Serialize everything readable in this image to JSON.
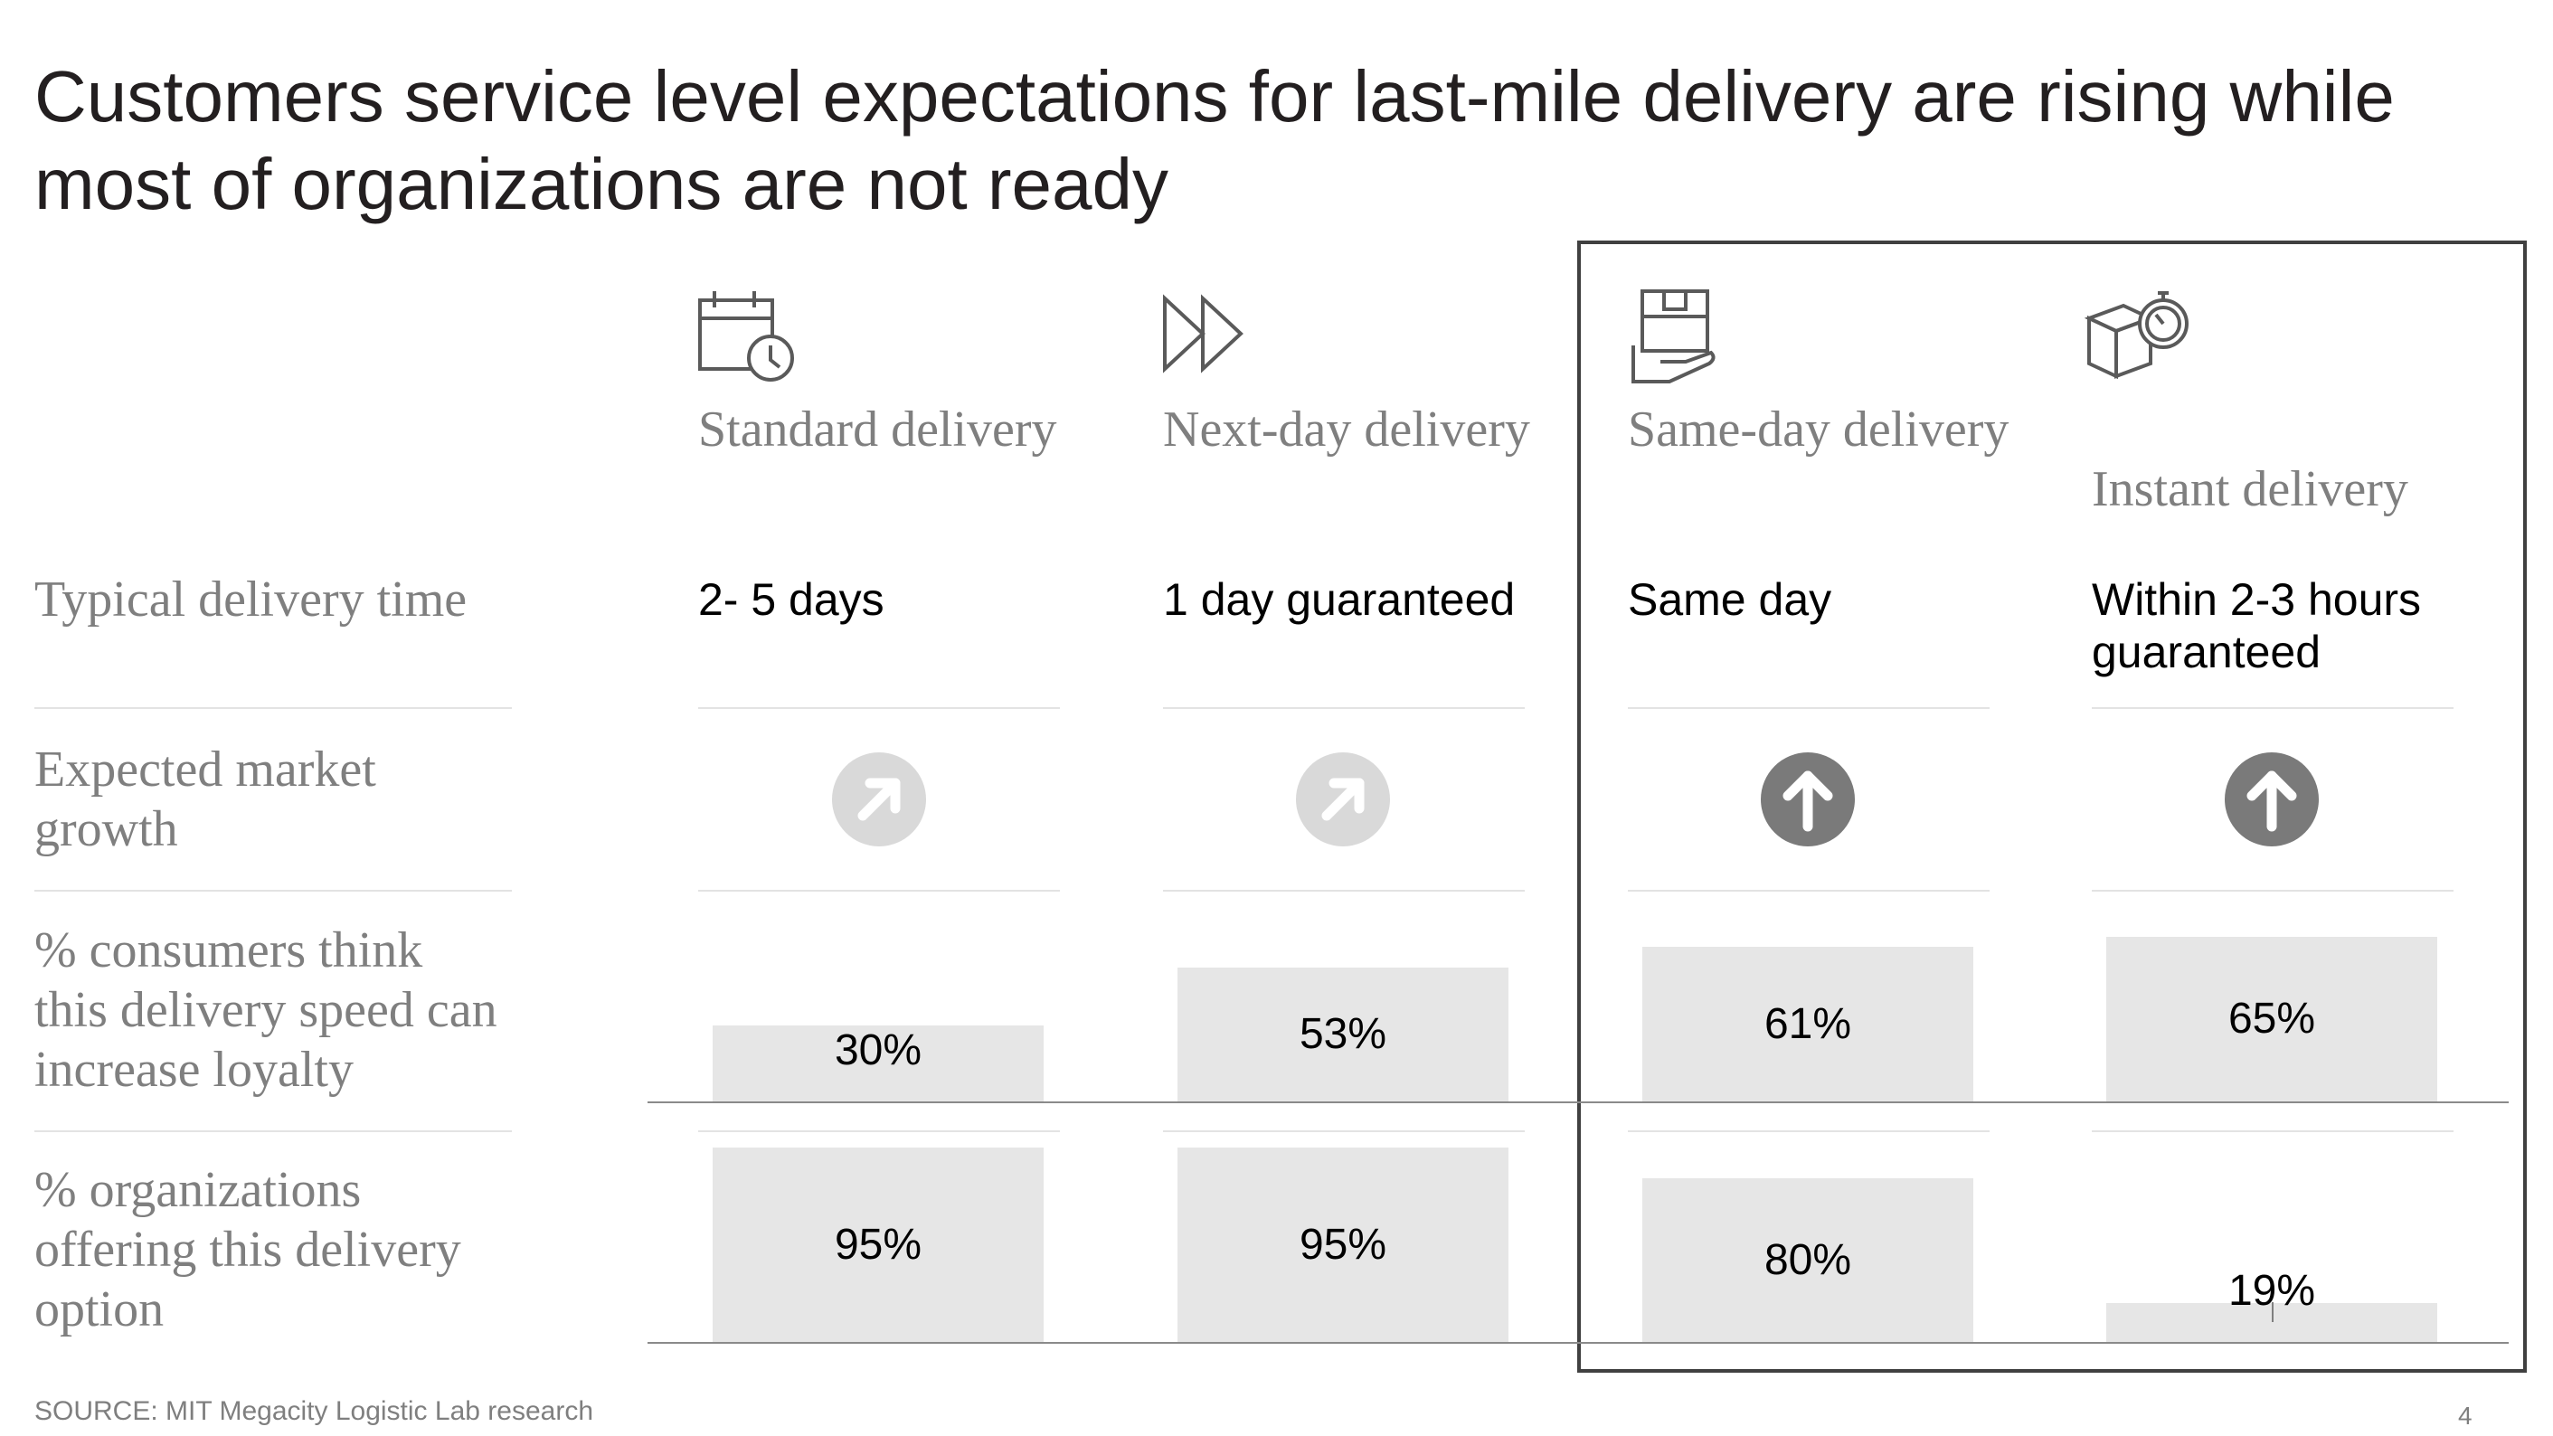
{
  "title": "Customers service level expectations for last-mile delivery are rising while most of organizations are not ready",
  "columns": [
    {
      "title": "Standard delivery",
      "icon": "calendar-clock-icon",
      "time": "2- 5 days",
      "growth": "up-right",
      "loyalty": 30,
      "loyalty_label": "30%",
      "offering": 95,
      "offering_label": "95%"
    },
    {
      "title": "Next-day delivery",
      "icon": "fast-forward-icon",
      "time": "1 day guaranteed",
      "growth": "up-right",
      "loyalty": 53,
      "loyalty_label": "53%",
      "offering": 95,
      "offering_label": "95%"
    },
    {
      "title": "Same-day delivery",
      "icon": "package-in-hand-icon",
      "time": "Same day",
      "growth": "up",
      "loyalty": 61,
      "loyalty_label": "61%",
      "offering": 80,
      "offering_label": "80%"
    },
    {
      "title": "Instant delivery",
      "icon": "package-stopwatch-icon",
      "time": "Within 2-3 hours guaranteed",
      "growth": "up",
      "loyalty": 65,
      "loyalty_label": "65%",
      "offering": 19,
      "offering_label": "19%"
    }
  ],
  "rows": {
    "time": "Typical delivery time",
    "growth": "Expected market growth",
    "loyalty": "% consumers think this delivery speed can increase loyalty",
    "offering": "% organizations offering this delivery option"
  },
  "colors": {
    "moderate_growth": "#d9d9d9",
    "strong_growth": "#7a7a7a",
    "bar": "#e6e6e6",
    "highlight_border": "#404040"
  },
  "chart_data": {
    "type": "bar",
    "categories": [
      "Standard delivery",
      "Next-day delivery",
      "Same-day delivery",
      "Instant delivery"
    ],
    "series": [
      {
        "name": "% consumers think this delivery speed can increase loyalty",
        "values": [
          30,
          53,
          61,
          65
        ]
      },
      {
        "name": "% organizations offering this delivery option",
        "values": [
          95,
          95,
          80,
          19
        ]
      }
    ],
    "title": "Customers service level expectations for last-mile delivery are rising while most of organizations are not ready",
    "ylim": [
      0,
      100
    ]
  },
  "source": "SOURCE: MIT Megacity Logistic Lab research",
  "page_number": "4"
}
